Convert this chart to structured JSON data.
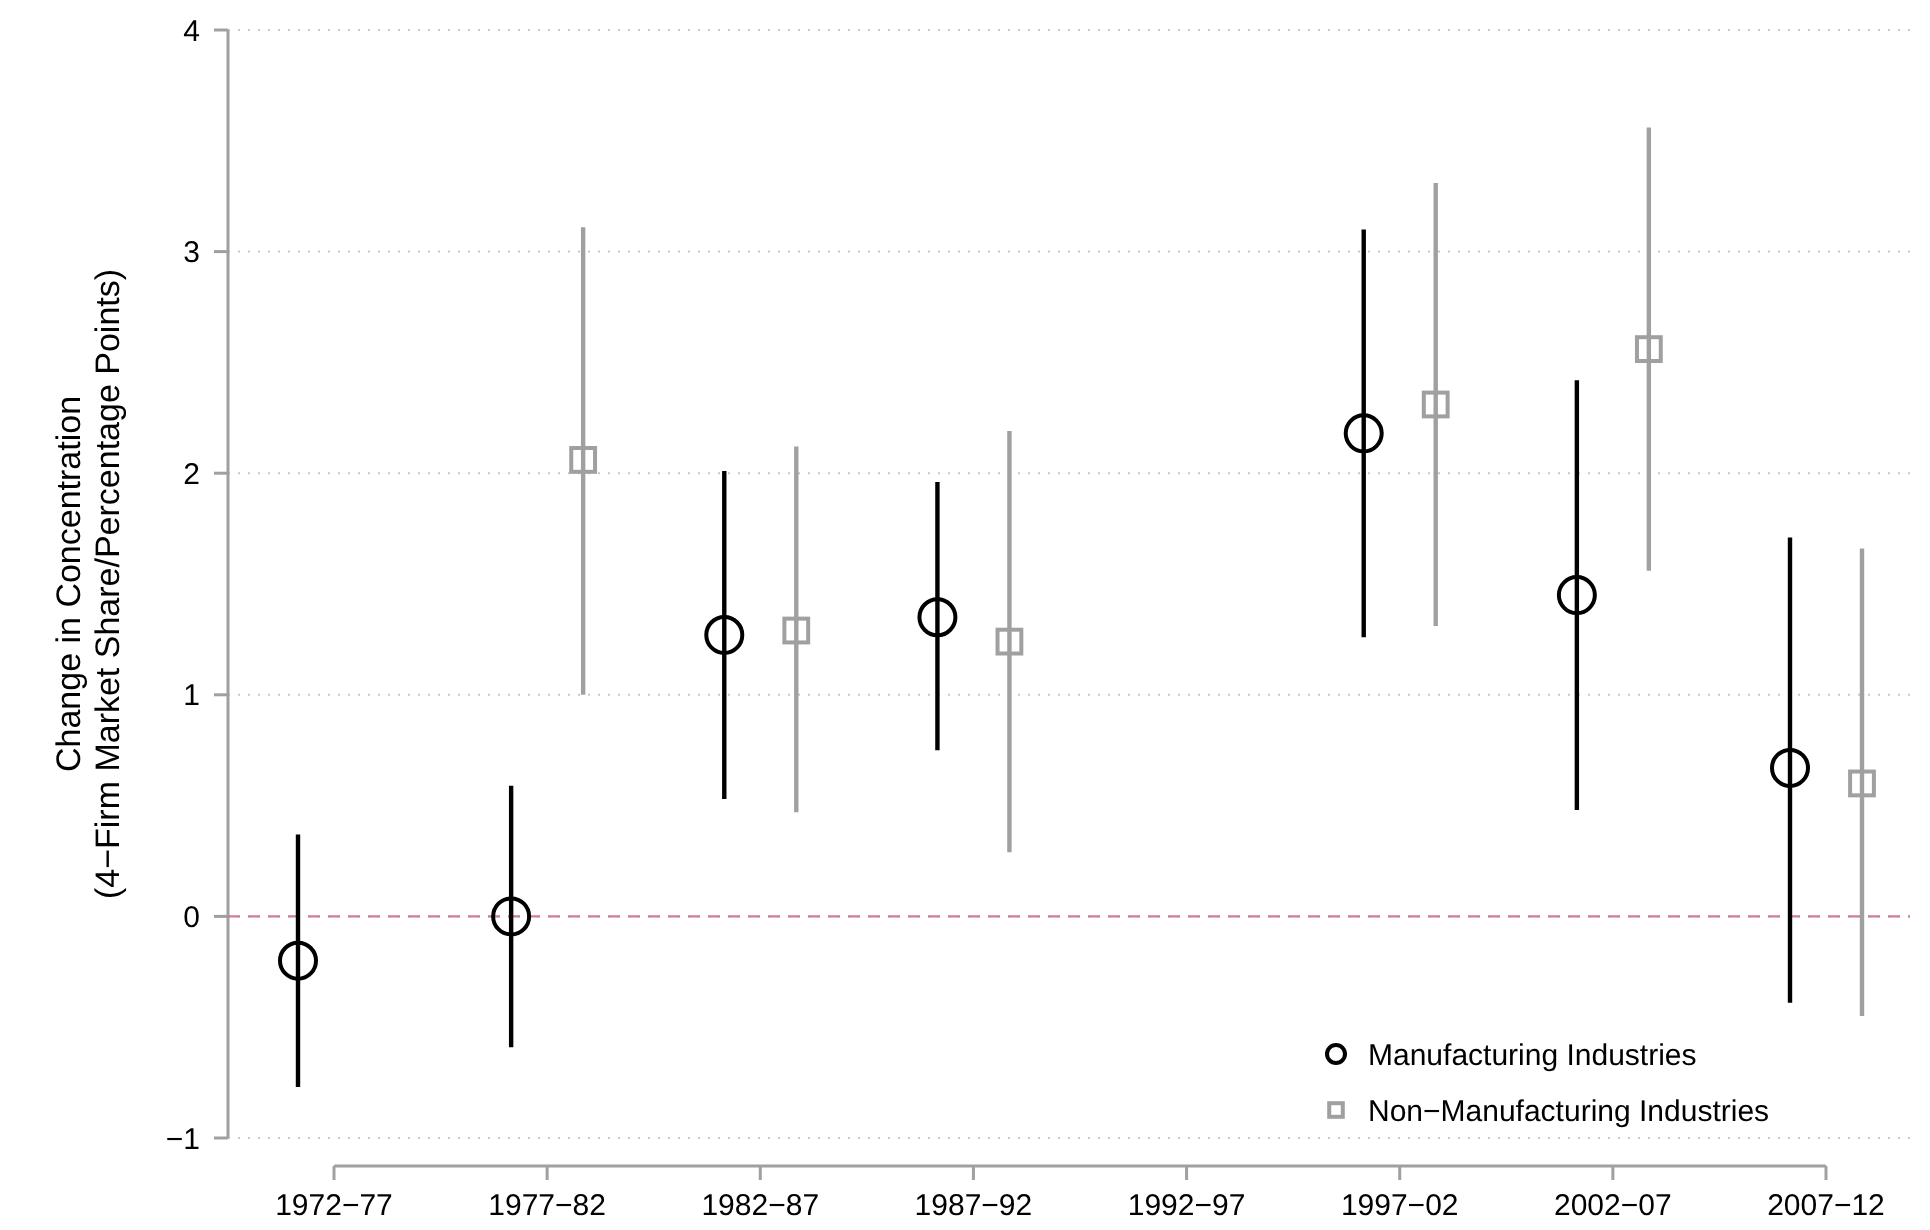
{
  "chart_data": {
    "type": "scatter",
    "ylabel": "Change in Concentration\n(4−Firm Market Share/Percentage Points)",
    "categories": [
      "1972−77",
      "1977−82",
      "1982−87",
      "1987−92",
      "1992−97",
      "1997−02",
      "2002−07",
      "2007−12"
    ],
    "series": [
      {
        "name": "Manufacturing Industries",
        "color": "#000000",
        "marker": "circle",
        "values": [
          -0.2,
          0.0,
          1.27,
          1.35,
          null,
          2.18,
          1.45,
          0.67
        ],
        "errors": [
          [
            -0.77,
            0.37
          ],
          [
            -0.59,
            0.59
          ],
          [
            0.53,
            2.01
          ],
          [
            0.75,
            1.96
          ],
          null,
          [
            1.26,
            3.1
          ],
          [
            0.48,
            2.42
          ],
          [
            -0.39,
            1.71
          ]
        ]
      },
      {
        "name": "Non−Manufacturing Industries",
        "color": "#a0a0a0",
        "marker": "square",
        "values": [
          null,
          2.06,
          1.29,
          1.24,
          null,
          2.31,
          2.56,
          0.6
        ],
        "errors": [
          null,
          [
            1.0,
            3.11
          ],
          [
            0.47,
            2.12
          ],
          [
            0.29,
            2.19
          ],
          null,
          [
            1.31,
            3.31
          ],
          [
            1.56,
            3.56
          ],
          [
            -0.45,
            1.66
          ]
        ]
      }
    ],
    "ylim": [
      -1,
      4
    ],
    "yticks": [
      {
        "value": -1,
        "label": "−1"
      },
      0,
      1,
      2,
      3,
      4
    ],
    "grid": "y",
    "legend": "bottom right",
    "ref_lines": [
      {
        "axis": "y",
        "value": 0,
        "color": "#d07aa0",
        "line_style": "dashed"
      }
    ]
  }
}
